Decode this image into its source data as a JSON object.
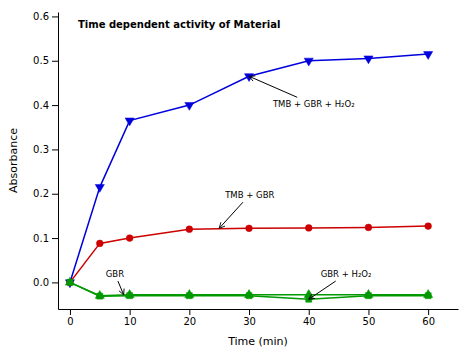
{
  "chart_data": {
    "type": "line",
    "title": "Time dependent activity of Material",
    "x_label": "Time (min)",
    "y_label": "Absorbance",
    "xlim": [
      -2,
      65
    ],
    "ylim": [
      -0.06,
      0.61
    ],
    "xticks": [
      0,
      10,
      20,
      30,
      40,
      50,
      60
    ],
    "yticks": [
      {
        "value": 0,
        "label": "0.0"
      },
      0.1,
      0.2,
      0.3,
      0.4,
      0.5,
      0.6
    ],
    "grid": false,
    "x": [
      0,
      5,
      10,
      20,
      30,
      40,
      50,
      60
    ],
    "series": [
      {
        "color": "#0000dd",
        "marker": "triangle-down",
        "values": [
          0.0,
          0.215,
          0.365,
          0.4,
          0.465,
          0.5,
          0.505,
          0.515
        ]
      },
      {
        "color": "#cc0000",
        "marker": "circle",
        "values": [
          0.0,
          0.088,
          0.1,
          0.12,
          0.122,
          0.123,
          0.124,
          0.127
        ]
      },
      {
        "color": "#009900",
        "marker": "triangle-up",
        "values": [
          0.0,
          -0.03,
          -0.028,
          -0.028,
          -0.028,
          -0.028,
          -0.028,
          -0.028
        ]
      },
      {
        "color": "#009900",
        "marker": "square",
        "values": [
          0.0,
          -0.031,
          -0.03,
          -0.03,
          -0.03,
          -0.038,
          -0.03,
          -0.03
        ]
      }
    ],
    "annotations": [
      {
        "text": "TMB + GBR + H₂O₂",
        "x": 30,
        "y": 0.465,
        "text_x": 34,
        "text_y": 0.395
      },
      {
        "text": "TMB + GBR",
        "x": 25,
        "y": 0.122,
        "text_x": 26,
        "text_y": 0.19
      },
      {
        "text": "GBR",
        "x": 9,
        "y": -0.028,
        "text_x": 6,
        "text_y": 0.012
      },
      {
        "text": "GBR + H₂O₂",
        "x": 40,
        "y": -0.038,
        "text_x": 42,
        "text_y": 0.012
      }
    ]
  }
}
